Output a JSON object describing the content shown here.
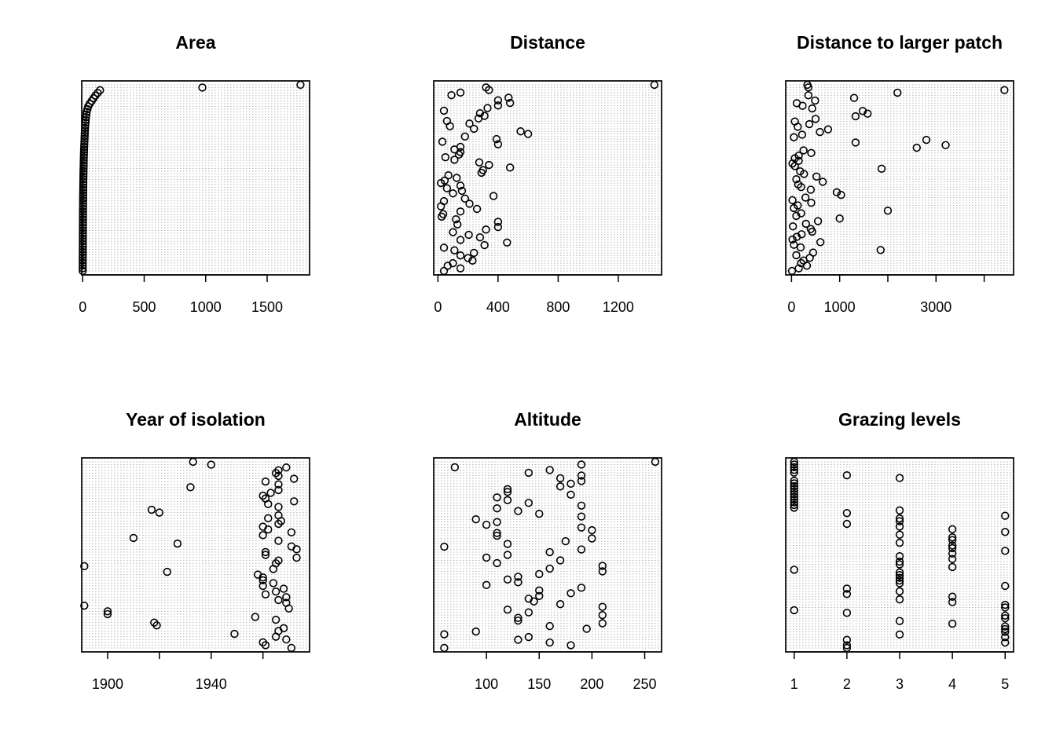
{
  "chart_data": [
    {
      "type": "scatter",
      "title": "Area",
      "xlim": [
        -8,
        1845
      ],
      "xticks": [
        0,
        500,
        1000,
        1500
      ],
      "xtick_labels": [
        "0",
        "500",
        "1000",
        "1500"
      ],
      "grid": true,
      "values": [
        0.1,
        0.2,
        0.3,
        0.4,
        0.5,
        0.6,
        0.7,
        0.8,
        0.9,
        1,
        1.1,
        1.2,
        1.3,
        1.4,
        1.5,
        1.6,
        1.7,
        1.8,
        1.9,
        2,
        2.1,
        2.2,
        2.4,
        2.6,
        2.8,
        3,
        3.2,
        3.4,
        3.6,
        3.8,
        4,
        4.3,
        4.6,
        5,
        5.4,
        5.8,
        6.2,
        6.6,
        7,
        7.5,
        8,
        8.5,
        9,
        9.6,
        10.3,
        11,
        12,
        13,
        14,
        15,
        16,
        17,
        18,
        19,
        21,
        23,
        25,
        27,
        30,
        33,
        39,
        45,
        58,
        73,
        88,
        103,
        122,
        141,
        973,
        1771
      ]
    },
    {
      "type": "scatter",
      "title": "Distance",
      "xlim": [
        -28,
        1488
      ],
      "xticks": [
        0,
        400,
        800,
        1200
      ],
      "xtick_labels": [
        "0",
        "400",
        "800",
        "1200"
      ],
      "grid": true,
      "values": [
        40,
        150,
        65,
        100,
        230,
        200,
        150,
        240,
        110,
        40,
        310,
        460,
        150,
        280,
        205,
        100,
        320,
        400,
        130,
        400,
        120,
        25,
        35,
        150,
        260,
        20,
        210,
        40,
        180,
        370,
        100,
        160,
        60,
        150,
        20,
        45,
        125,
        70,
        290,
        300,
        480,
        340,
        275,
        110,
        50,
        140,
        150,
        110,
        150,
        400,
        30,
        390,
        180,
        600,
        550,
        240,
        80,
        210,
        60,
        270,
        310,
        280,
        40,
        330,
        400,
        480,
        400,
        470,
        90,
        150,
        340,
        320,
        1440
      ]
    },
    {
      "type": "scatter",
      "title": "Distance to larger patch",
      "xlim": [
        -120,
        4610
      ],
      "xticks": [
        0,
        1000,
        2000,
        3000,
        4000
      ],
      "xtick_labels": [
        "0",
        "1000",
        "",
        "3000",
        ""
      ],
      "grid": true,
      "values": [
        10,
        150,
        320,
        200,
        250,
        380,
        100,
        450,
        1850,
        190,
        50,
        600,
        20,
        110,
        210,
        430,
        400,
        30,
        300,
        550,
        1000,
        100,
        200,
        2000,
        50,
        130,
        410,
        20,
        290,
        1030,
        940,
        400,
        200,
        140,
        650,
        100,
        520,
        260,
        180,
        1870,
        70,
        20,
        150,
        70,
        150,
        410,
        250,
        2600,
        3200,
        1330,
        2800,
        50,
        220,
        590,
        760,
        130,
        370,
        70,
        500,
        1330,
        1580,
        1480,
        430,
        230,
        110,
        490,
        1300,
        350,
        2200,
        4420,
        350,
        330
      ]
    },
    {
      "type": "scatter",
      "title": "Year of isolation",
      "xlim": [
        1890,
        1978
      ],
      "xticks": [
        1900,
        1920,
        1940,
        1960
      ],
      "xtick_labels": [
        "1900",
        "",
        "1940",
        ""
      ],
      "grid": true,
      "values": [
        1971,
        1961,
        1960,
        1969,
        1965,
        1949,
        1966,
        1968,
        1919,
        1918,
        1965,
        1957,
        1900,
        1900,
        1970,
        1891,
        1969,
        1966,
        1969,
        1961,
        1965,
        1968,
        1960,
        1964,
        1960,
        1960,
        1958,
        1923,
        1964,
        1891,
        1965,
        1966,
        1973,
        1961,
        1961,
        1973,
        1971,
        1927,
        1966,
        1910,
        1960,
        1971,
        1962,
        1960,
        1966,
        1967,
        1962,
        1966,
        1920,
        1917,
        1966,
        1962,
        1972,
        1961,
        1960,
        1963,
        1966,
        1932,
        1966,
        1961,
        1972,
        1966,
        1965,
        1966,
        1969,
        1940,
        1933
      ]
    },
    {
      "type": "scatter",
      "title": "Altitude",
      "xlim": [
        50,
        266
      ],
      "xticks": [
        100,
        150,
        200,
        250
      ],
      "xtick_labels": [
        "100",
        "150",
        "200",
        "250"
      ],
      "grid": true,
      "values": [
        60,
        180,
        160,
        130,
        140,
        60,
        90,
        195,
        160,
        210,
        130,
        130,
        210,
        140,
        120,
        210,
        170,
        145,
        140,
        150,
        180,
        150,
        190,
        100,
        130,
        120,
        130,
        150,
        210,
        160,
        210,
        110,
        170,
        100,
        120,
        160,
        190,
        60,
        120,
        175,
        200,
        110,
        110,
        200,
        190,
        100,
        110,
        90,
        190,
        150,
        130,
        110,
        190,
        140,
        120,
        110,
        180,
        120,
        120,
        170,
        180,
        190,
        170,
        190,
        140,
        160,
        70,
        190,
        260
      ]
    },
    {
      "type": "scatter",
      "title": "Grazing levels",
      "xlim": [
        0.84,
        5.16
      ],
      "xticks": [
        1,
        2,
        3,
        4,
        5
      ],
      "xtick_labels": [
        "1",
        "2",
        "3",
        "4",
        "5"
      ],
      "grid": true,
      "values": [
        2,
        2,
        5,
        2,
        5,
        3,
        5,
        5,
        5,
        4,
        3,
        5,
        5,
        2,
        1,
        5,
        5,
        4,
        3,
        4,
        2,
        3,
        2,
        5,
        3,
        3,
        3,
        3,
        3,
        1,
        4,
        3,
        3,
        4,
        3,
        4,
        5,
        4,
        4,
        3,
        4,
        4,
        3,
        5,
        4,
        3,
        2,
        3,
        3,
        5,
        2,
        3,
        1,
        1,
        1,
        1,
        1,
        1,
        1,
        1,
        1,
        1,
        1,
        3,
        2,
        1,
        1,
        1,
        1,
        1
      ]
    }
  ]
}
